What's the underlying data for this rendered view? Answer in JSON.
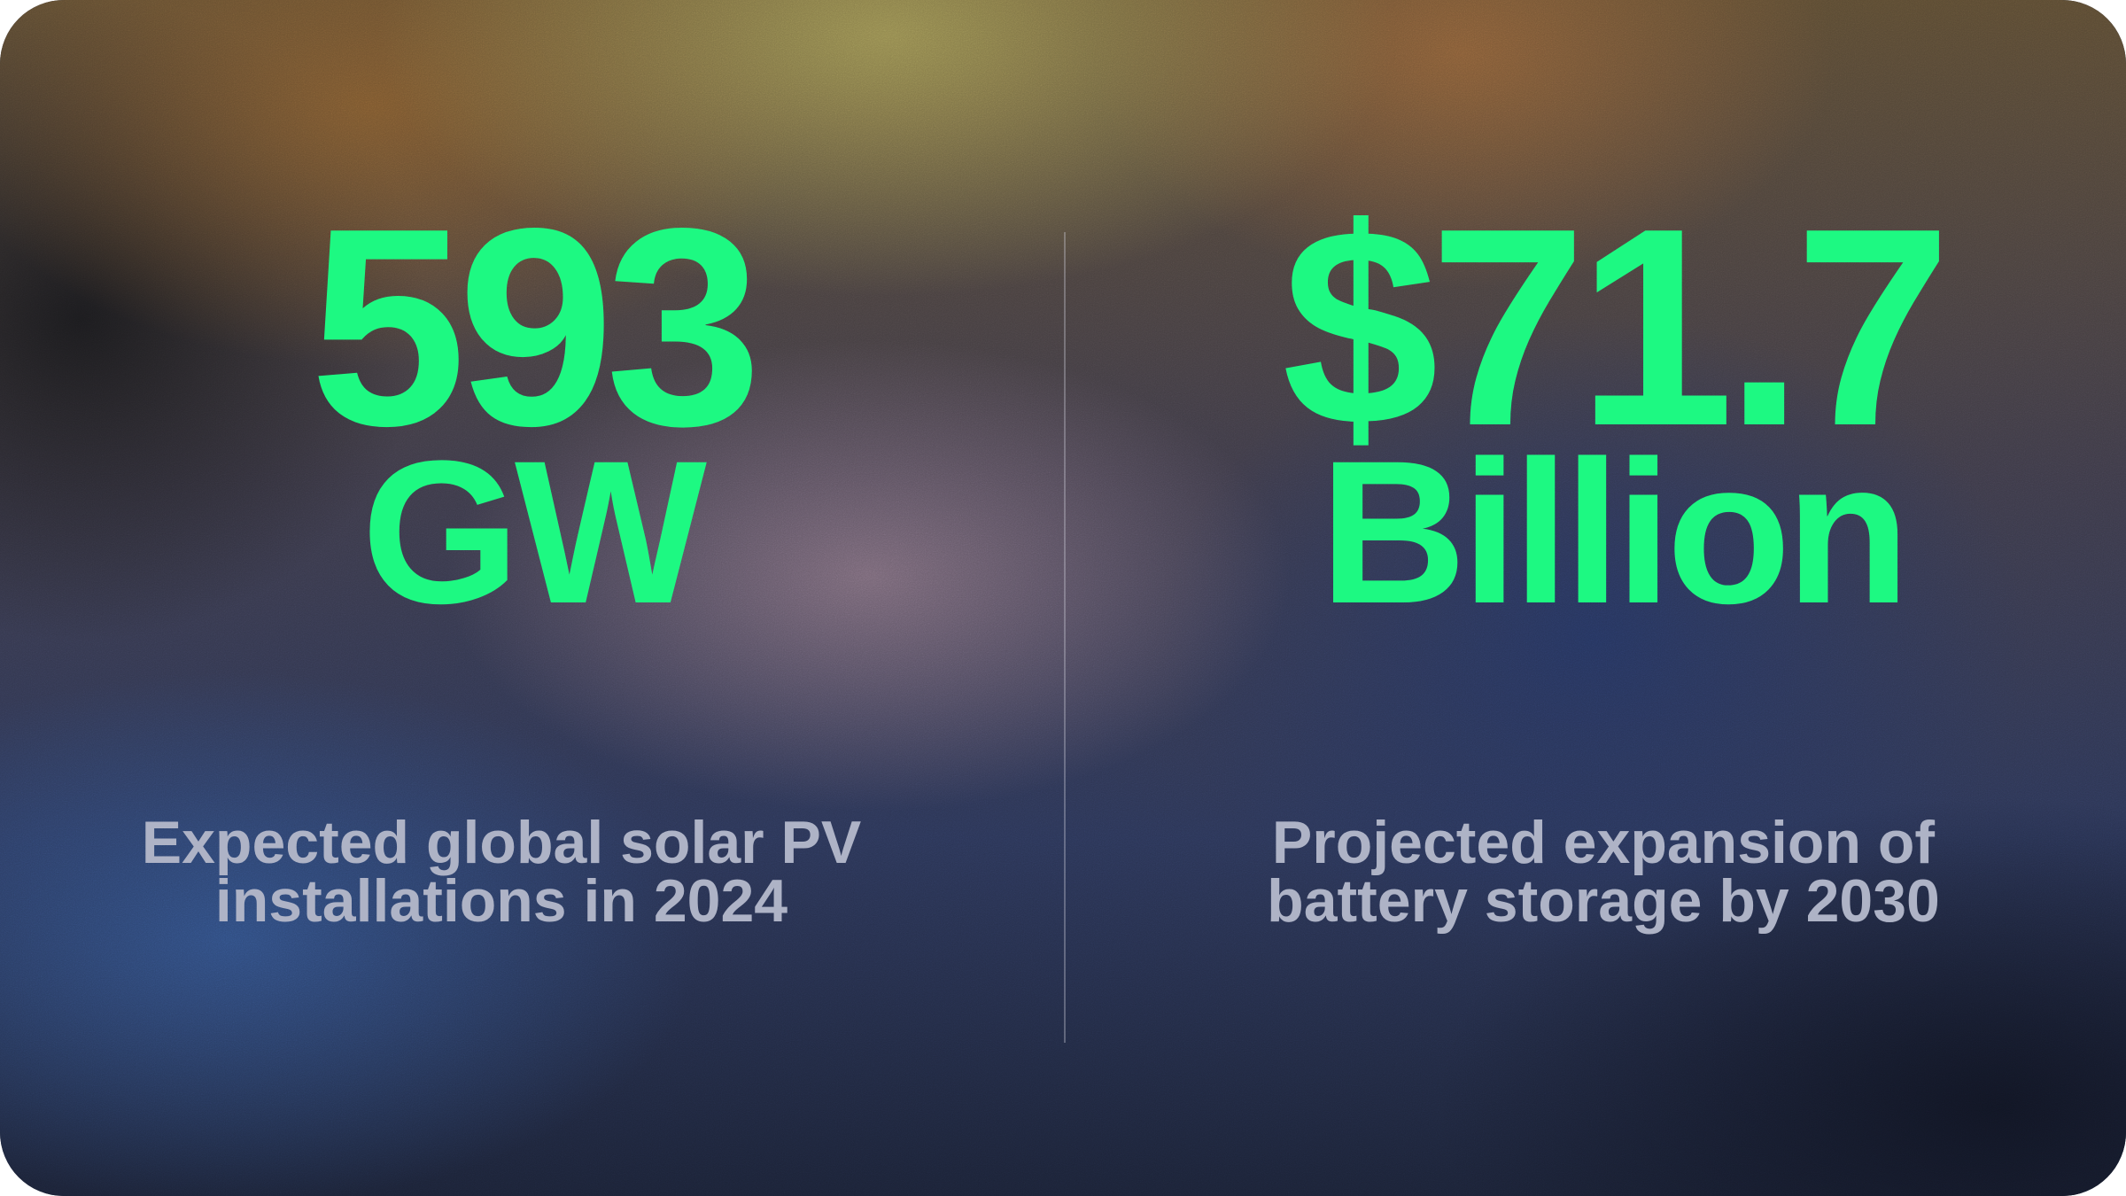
{
  "stats": [
    {
      "value": "593",
      "unit": "GW",
      "caption_line1": "Expected global solar PV",
      "caption_line2": "installations in 2024"
    },
    {
      "value": "$71.7",
      "unit": "Billion",
      "caption_line1": "Projected expansion of",
      "caption_line2": "battery storage by 2030"
    }
  ],
  "colors": {
    "accent": "#1df982",
    "caption": "#aeb3c6",
    "divider": "#d2d2dc"
  }
}
